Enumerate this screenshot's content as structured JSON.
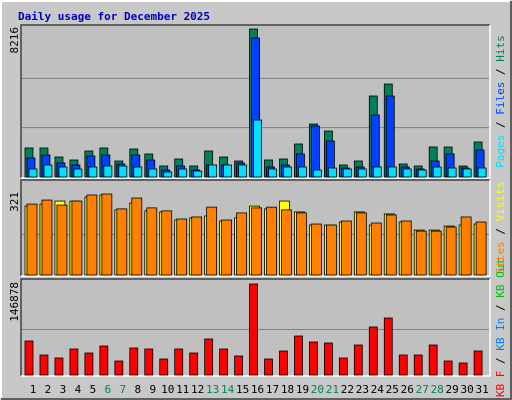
{
  "chart_data": [
    {
      "type": "bar",
      "title": "Daily usage for December 2025",
      "ylim": [
        0,
        8216
      ],
      "yticks": [
        8216
      ],
      "grid_divisions": 3,
      "legend_separator": " / ",
      "series": [
        {
          "name": "Hits",
          "color": "#00805C",
          "values": [
            1610,
            1610,
            1110,
            944,
            1443,
            1610,
            888,
            1554,
            1277,
            611,
            999,
            611,
            1443,
            1110,
            888,
            8216,
            944,
            999,
            1832,
            2942,
            2553,
            666,
            888,
            4496,
            5162,
            722,
            611,
            1665,
            1665,
            611,
            1943
          ]
        },
        {
          "name": "Files",
          "color": "#0040FF",
          "values": [
            1055,
            1221,
            777,
            666,
            1166,
            1221,
            722,
            1221,
            944,
            389,
            611,
            389,
            666,
            666,
            777,
            7716,
            555,
            666,
            1277,
            2831,
            1998,
            500,
            555,
            3441,
            4496,
            555,
            444,
            888,
            1277,
            500,
            1499
          ]
        },
        {
          "name": "Pages",
          "color": "#00E0FF",
          "values": [
            444,
            666,
            555,
            444,
            555,
            611,
            611,
            555,
            444,
            278,
            444,
            333,
            666,
            666,
            666,
            3164,
            444,
            555,
            555,
            389,
            500,
            444,
            444,
            555,
            555,
            444,
            389,
            555,
            500,
            444,
            500
          ]
        }
      ]
    },
    {
      "type": "bar",
      "ylim": [
        0,
        321
      ],
      "yticks": [
        321
      ],
      "grid_divisions": 2,
      "legend_separator": " / ",
      "series": [
        {
          "name": "Visits",
          "color": "#FFFF00",
          "values": [
            273,
            281,
            293,
            293,
            309,
            317,
            258,
            285,
            254,
            250,
            218,
            226,
            234,
            214,
            226,
            273,
            262,
            293,
            250,
            198,
            198,
            210,
            250,
            198,
            242,
            210,
            178,
            178,
            194,
            198,
            202
          ]
        },
        {
          "name": "Sites",
          "color": "#FF8000",
          "values": [
            281,
            297,
            277,
            293,
            317,
            321,
            262,
            305,
            266,
            254,
            222,
            230,
            269,
            218,
            246,
            266,
            269,
            258,
            246,
            202,
            198,
            214,
            246,
            206,
            238,
            214,
            174,
            174,
            190,
            230,
            210
          ]
        }
      ]
    },
    {
      "type": "bar",
      "ylim": [
        0,
        146878
      ],
      "yticks": [
        146878
      ],
      "grid_divisions": 2,
      "legend_separator": " / ",
      "categories": [
        "1",
        "2",
        "3",
        "4",
        "5",
        "6",
        "7",
        "8",
        "9",
        "10",
        "11",
        "12",
        "13",
        "14",
        "15",
        "16",
        "17",
        "18",
        "19",
        "20",
        "21",
        "22",
        "23",
        "24",
        "25",
        "26",
        "27",
        "28",
        "29",
        "30",
        "31"
      ],
      "category_colors": [
        "#000000",
        "#000000",
        "#000000",
        "#000000",
        "#000000",
        "#00805C",
        "#00805C",
        "#000000",
        "#000000",
        "#000000",
        "#000000",
        "#000000",
        "#00805C",
        "#00805C",
        "#000000",
        "#000000",
        "#000000",
        "#000000",
        "#000000",
        "#00805C",
        "#00805C",
        "#000000",
        "#000000",
        "#000000",
        "#000000",
        "#000000",
        "#00805C",
        "#00805C",
        "#000000",
        "#000000",
        "#000000"
      ],
      "series": [
        {
          "name": "KB Out",
          "color": "#00C000",
          "values": [
            0,
            0,
            0,
            0,
            0,
            0,
            0,
            0,
            0,
            0,
            0,
            0,
            0,
            0,
            0,
            0,
            0,
            0,
            0,
            0,
            0,
            0,
            0,
            0,
            0,
            0,
            0,
            0,
            0,
            0,
            0
          ]
        },
        {
          "name": "KB In",
          "color": "#0080FF",
          "values": [
            0,
            0,
            0,
            0,
            0,
            0,
            0,
            0,
            0,
            0,
            0,
            0,
            0,
            0,
            0,
            0,
            0,
            0,
            0,
            0,
            0,
            0,
            0,
            0,
            0,
            0,
            0,
            0,
            0,
            0,
            0
          ]
        },
        {
          "name": "KB F",
          "color": "#FF0000",
          "values": [
            54876,
            32280,
            27438,
            41964,
            35508,
            46806,
            22596,
            43578,
            41964,
            25824,
            41964,
            35508,
            58104,
            41964,
            30666,
            146878,
            25824,
            38736,
            62946,
            53262,
            51648,
            27438,
            48420,
            77472,
            91998,
            32280,
            32280,
            48420,
            22596,
            19368,
            38736
          ]
        }
      ]
    }
  ]
}
